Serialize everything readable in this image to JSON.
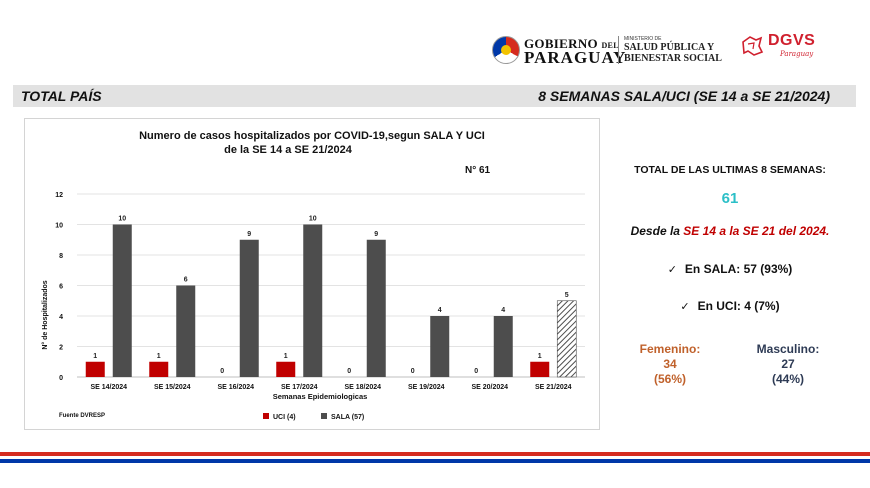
{
  "header": {
    "gov_line1": "GOBIERNO",
    "gov_del": "DEL",
    "gov_line2": "PARAGUAY",
    "ministry_small": "MINISTERIO DE",
    "ministry_line1": "SALUD PÚBLICA Y",
    "ministry_line2": "BIENESTAR SOCIAL",
    "dgvs": "DGVS",
    "dgvs_sub": "Paraguay"
  },
  "banner": {
    "left": "TOTAL PAÍS",
    "right": "8 SEMANAS SALA/UCI  (SE 14 a SE 21/2024)"
  },
  "chart_data": {
    "type": "bar",
    "title_line1": "Numero de casos hospitalizados por COVID-19,segun SALA Y UCI",
    "title_line2": "de la SE 14 a SE 21/2024",
    "annotation": "N° 61",
    "xlabel": "Semanas Epidemiologicas",
    "ylabel": "N° de Hospitalizados",
    "ylim": [
      0,
      12
    ],
    "yticks": [
      0,
      2,
      4,
      6,
      8,
      10,
      12
    ],
    "grid": true,
    "legend_position": "bottom",
    "source": "Fuente DVRESP",
    "categories": [
      "SE 14/2024",
      "SE 15/2024",
      "SE 16/2024",
      "SE 17/2024",
      "SE 18/2024",
      "SE 19/2024",
      "SE 20/2024",
      "SE 21/2024"
    ],
    "series": [
      {
        "name": "UCI (4)",
        "color": "#c00000",
        "values": [
          1,
          1,
          0,
          1,
          0,
          0,
          0,
          1
        ]
      },
      {
        "name": "SALA (57)",
        "color": "#4d4d4d",
        "values": [
          10,
          6,
          9,
          10,
          9,
          4,
          4,
          5
        ],
        "hatched_last": true
      }
    ]
  },
  "stats": {
    "total_label": "TOTAL DE LAS ULTIMAS 8 SEMANAS:",
    "total_value": "61",
    "range_prefix": "Desde la ",
    "range_highlight": "SE 14 a la SE 21 del  2024.",
    "sala": "En SALA: 57 (93%)",
    "uci": "En UCI: 4 (7%)",
    "check_icon": "✓",
    "female_label": "Femenino:",
    "female_count": "34",
    "female_pct": "(56%)",
    "male_label": "Masculino:",
    "male_count": "27",
    "male_pct": "(44%)"
  }
}
